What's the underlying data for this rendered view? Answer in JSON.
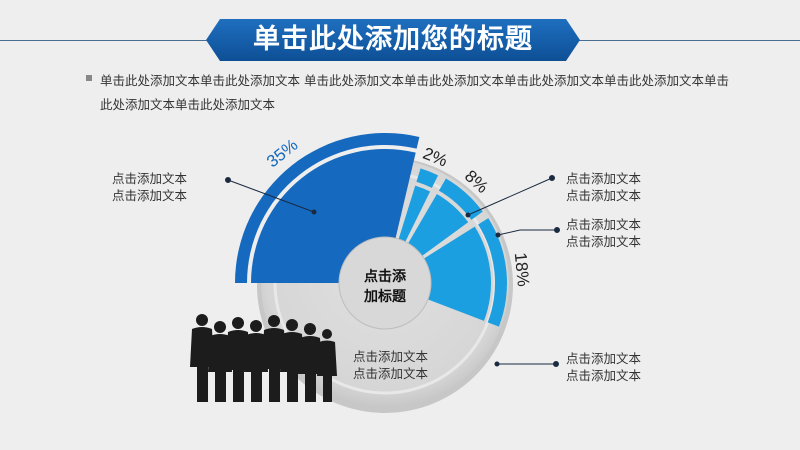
{
  "title": "单击此处添加您的标题",
  "intro": "单击此处添加文本单击此处添加文本 单击此处添加文本单击此处添加文本单击此处添加文本单击此处添加文本单击此处添加文本单击此处添加文本",
  "center_label": {
    "line1": "点击添",
    "line2": "加标题"
  },
  "chart_data": {
    "type": "pie",
    "title": "",
    "unit": "%",
    "series": [
      {
        "value": 35,
        "label": "35%",
        "color": "#1569bf"
      },
      {
        "value": 2,
        "label": "2%",
        "color": "#1c9fe0"
      },
      {
        "value": 8,
        "label": "8%",
        "color": "#1c9fe0"
      },
      {
        "value": 18,
        "label": "18%",
        "color": "#1c9fe0"
      }
    ]
  },
  "callouts": {
    "left_top": {
      "line1": "点击添加文本",
      "line2": "点击添加文本"
    },
    "right_1": {
      "line1": "点击添加文本",
      "line2": "点击添加文本"
    },
    "right_2": {
      "line1": "点击添加文本",
      "line2": "点击添加文本"
    },
    "right_3": {
      "line1": "点击添加文本",
      "line2": "点击添加文本"
    },
    "bottom_center": {
      "line1": "点击添加文本",
      "line2": "点击添加文本"
    }
  },
  "colors": {
    "accent": "#1569bf",
    "light_accent": "#1c9fe0",
    "banner": "#1466b6"
  },
  "icons": {
    "people": "people-silhouette-icon"
  }
}
